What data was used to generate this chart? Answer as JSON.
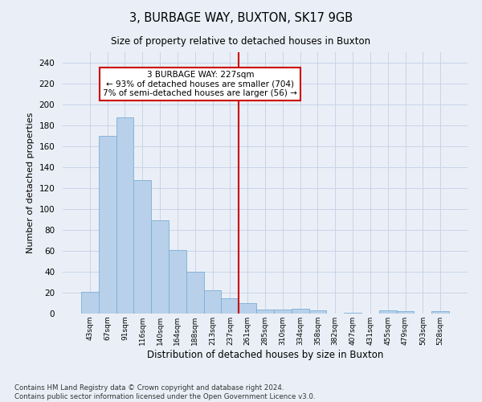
{
  "title": "3, BURBAGE WAY, BUXTON, SK17 9GB",
  "subtitle": "Size of property relative to detached houses in Buxton",
  "xlabel": "Distribution of detached houses by size in Buxton",
  "ylabel": "Number of detached properties",
  "categories": [
    "43sqm",
    "67sqm",
    "91sqm",
    "116sqm",
    "140sqm",
    "164sqm",
    "188sqm",
    "213sqm",
    "237sqm",
    "261sqm",
    "285sqm",
    "310sqm",
    "334sqm",
    "358sqm",
    "382sqm",
    "407sqm",
    "431sqm",
    "455sqm",
    "479sqm",
    "503sqm",
    "528sqm"
  ],
  "values": [
    21,
    170,
    188,
    128,
    89,
    61,
    40,
    22,
    15,
    10,
    4,
    4,
    5,
    3,
    0,
    1,
    0,
    3,
    2,
    0,
    2
  ],
  "bar_color": "#b8d0ea",
  "bar_edge_color": "#7aafd4",
  "vline_x": 8.5,
  "vline_color": "#cc0000",
  "annotation_text": "3 BURBAGE WAY: 227sqm\n← 93% of detached houses are smaller (704)\n7% of semi-detached houses are larger (56) →",
  "annotation_box_color": "#ffffff",
  "annotation_box_edge": "#cc0000",
  "ylim": [
    0,
    250
  ],
  "yticks": [
    0,
    20,
    40,
    60,
    80,
    100,
    120,
    140,
    160,
    180,
    200,
    220,
    240
  ],
  "grid_color": "#c8d4e8",
  "background_color": "#eaeff7",
  "footer": "Contains HM Land Registry data © Crown copyright and database right 2024.\nContains public sector information licensed under the Open Government Licence v3.0."
}
